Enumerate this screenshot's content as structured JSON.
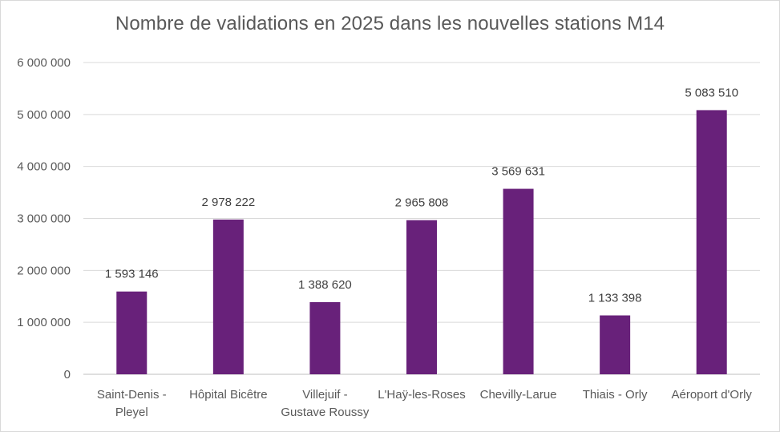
{
  "chart_data": {
    "type": "bar",
    "title": "Nombre de validations en 2025 dans les nouvelles stations M14",
    "xlabel": "",
    "ylabel": "",
    "categories": [
      [
        "Saint-Denis -",
        "Pleyel"
      ],
      [
        "Hôpital Bicêtre"
      ],
      [
        "Villejuif -",
        "Gustave Roussy"
      ],
      [
        "L'Haÿ-les-Roses"
      ],
      [
        "Chevilly-Larue"
      ],
      [
        "Thiais - Orly"
      ],
      [
        "Aéroport d'Orly"
      ]
    ],
    "values": [
      1593146,
      2978222,
      1388620,
      2965808,
      3569631,
      1133398,
      5083510
    ],
    "data_labels": [
      "1 593 146",
      "2 978 222",
      "1 388 620",
      "2 965 808",
      "3 569 631",
      "1 133 398",
      "5 083 510"
    ],
    "ylim": [
      0,
      6000000
    ],
    "yticks": [
      0,
      1000000,
      2000000,
      3000000,
      4000000,
      5000000,
      6000000
    ],
    "ytick_labels": [
      "0",
      "1 000 000",
      "2 000 000",
      "3 000 000",
      "4 000 000",
      "5 000 000",
      "6 000 000"
    ],
    "grid": true,
    "legend": "none",
    "bar_color": "#68217a",
    "grid_color": "#d9d9d9"
  }
}
